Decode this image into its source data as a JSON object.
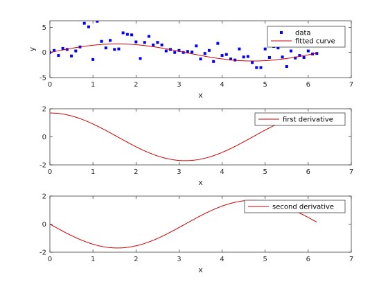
{
  "colors": {
    "data_marker": "#0000ff",
    "curve": "#cc0000",
    "axis": "#262626",
    "background": "#ffffff"
  },
  "chart_data": [
    {
      "type": "scatter",
      "title": "",
      "xlabel": "x",
      "ylabel": "y",
      "xlim": [
        0,
        7
      ],
      "ylim": [
        -5,
        6.3
      ],
      "xticks": [
        0,
        1,
        2,
        3,
        4,
        5,
        6,
        7
      ],
      "yticks": [
        -5,
        0,
        5
      ],
      "legend_position": "top-right",
      "grid": false,
      "series": [
        {
          "name": "data",
          "style": "markers",
          "x": [
            0.0,
            0.1,
            0.2,
            0.3,
            0.4,
            0.5,
            0.6,
            0.7,
            0.8,
            0.9,
            1.0,
            1.1,
            1.2,
            1.3,
            1.4,
            1.5,
            1.6,
            1.7,
            1.8,
            1.9,
            2.0,
            2.1,
            2.2,
            2.3,
            2.4,
            2.5,
            2.6,
            2.7,
            2.8,
            2.9,
            3.0,
            3.1,
            3.2,
            3.3,
            3.4,
            3.5,
            3.6,
            3.7,
            3.8,
            3.9,
            4.0,
            4.1,
            4.2,
            4.3,
            4.4,
            4.5,
            4.6,
            4.7,
            4.8,
            4.9,
            5.0,
            5.1,
            5.2,
            5.3,
            5.4,
            5.5,
            5.6,
            5.7,
            5.8,
            5.9,
            6.0,
            6.1,
            6.2
          ],
          "y": [
            0.0,
            0.4,
            -0.6,
            0.8,
            0.6,
            -0.7,
            0.3,
            1.1,
            5.8,
            5.1,
            -1.4,
            6.2,
            2.2,
            0.9,
            2.4,
            0.6,
            0.7,
            3.9,
            3.6,
            3.5,
            2.1,
            -1.2,
            2.0,
            3.2,
            1.5,
            2.0,
            1.5,
            0.3,
            0.6,
            0.0,
            0.4,
            0.0,
            0.2,
            0.1,
            1.3,
            -1.3,
            -0.2,
            0.4,
            -1.8,
            1.8,
            -0.6,
            -0.4,
            -1.3,
            -1.5,
            0.7,
            -0.9,
            -0.8,
            -2.0,
            -3.0,
            -3.0,
            0.7,
            -1.0,
            1.2,
            0.9,
            -0.9,
            -2.8,
            0.3,
            -1.1,
            -0.6,
            -1.0,
            0.3,
            -0.3,
            -0.2
          ]
        },
        {
          "name": "fitted curve",
          "style": "line",
          "function": "1.7*sin(x)",
          "x_range": [
            0,
            6.2
          ]
        }
      ]
    },
    {
      "type": "line",
      "title": "",
      "xlabel": "x",
      "ylabel": "",
      "xlim": [
        0,
        7
      ],
      "ylim": [
        -2,
        2
      ],
      "xticks": [
        0,
        1,
        2,
        3,
        4,
        5,
        6,
        7
      ],
      "yticks": [
        -2,
        0,
        2
      ],
      "legend_position": "top-right",
      "grid": false,
      "series": [
        {
          "name": "first derivative",
          "style": "line",
          "function": "1.7*cos(x)",
          "x_range": [
            0,
            6.2
          ]
        }
      ]
    },
    {
      "type": "line",
      "title": "",
      "xlabel": "x",
      "ylabel": "",
      "xlim": [
        0,
        7
      ],
      "ylim": [
        -2,
        2
      ],
      "xticks": [
        0,
        1,
        2,
        3,
        4,
        5,
        6,
        7
      ],
      "yticks": [
        -2,
        0,
        2
      ],
      "legend_position": "top-right",
      "grid": false,
      "series": [
        {
          "name": "second derivative",
          "style": "line",
          "function": "-1.7*sin(x)",
          "x_range": [
            0,
            6.2
          ]
        }
      ]
    }
  ]
}
